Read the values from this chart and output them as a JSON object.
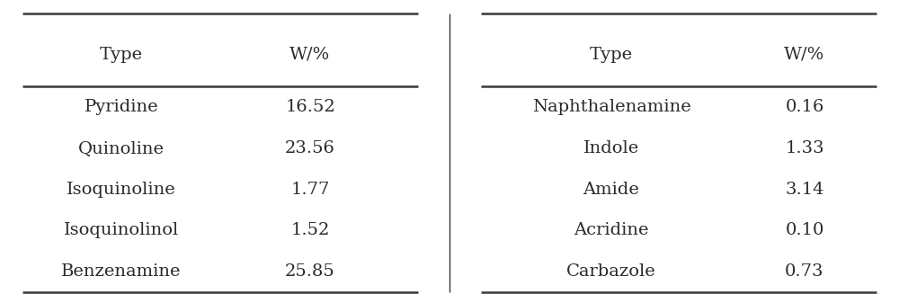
{
  "left_headers": [
    "Type",
    "W/%"
  ],
  "right_headers": [
    "Type",
    "W/%"
  ],
  "left_rows": [
    [
      "Pyridine",
      "16.52"
    ],
    [
      "Quinoline",
      "23.56"
    ],
    [
      "Isoquinoline",
      "1.77"
    ],
    [
      "Isoquinolinol",
      "1.52"
    ],
    [
      "Benzenamine",
      "25.85"
    ]
  ],
  "right_rows": [
    [
      "Naphthalenamine",
      "0.16"
    ],
    [
      "Indole",
      "1.33"
    ],
    [
      "Amide",
      "3.14"
    ],
    [
      "Acridine",
      "0.10"
    ],
    [
      "Carbazole",
      "0.73"
    ]
  ],
  "font_size": 14,
  "header_font_size": 14,
  "bg_color": "#ffffff",
  "text_color": "#2a2a2a",
  "line_color": "#3a3a3a",
  "fig_width": 10.0,
  "fig_height": 3.37
}
